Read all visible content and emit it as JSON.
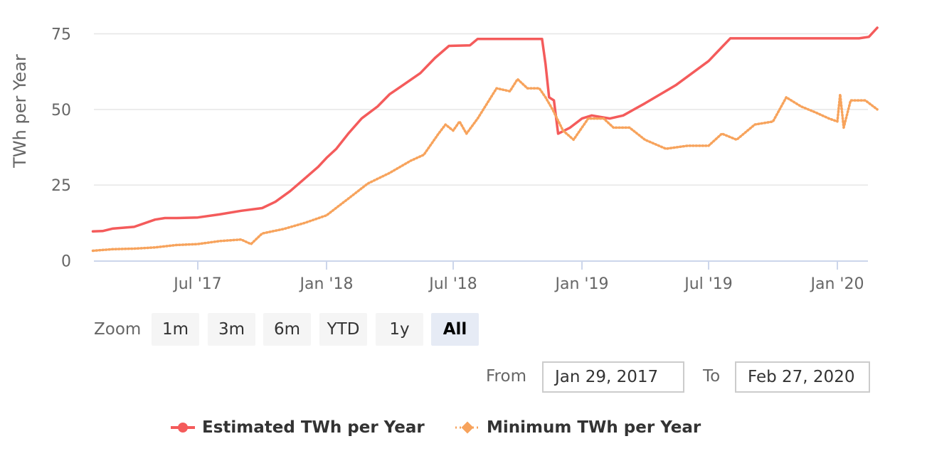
{
  "chart_data": {
    "type": "line",
    "ylabel": "TWh per Year",
    "yticks": [
      0,
      25,
      50,
      75
    ],
    "ylim": [
      0,
      75
    ],
    "x_ticks": [
      {
        "date": "2017-07-01",
        "label": "Jul '17"
      },
      {
        "date": "2018-01-01",
        "label": "Jan '18"
      },
      {
        "date": "2018-07-01",
        "label": "Jul '18"
      },
      {
        "date": "2019-01-01",
        "label": "Jan '19"
      },
      {
        "date": "2019-07-01",
        "label": "Jul '19"
      },
      {
        "date": "2020-01-01",
        "label": "Jan '20"
      }
    ],
    "xlim": [
      "2017-02-01",
      "2020-02-27"
    ],
    "grid": true,
    "series": [
      {
        "name": "Estimated TWh per Year",
        "color": "#f45b5b",
        "style": "solid",
        "points": [
          [
            "2017-02-01",
            9.7
          ],
          [
            "2017-02-15",
            9.8
          ],
          [
            "2017-03-01",
            10.6
          ],
          [
            "2017-04-01",
            11.2
          ],
          [
            "2017-05-01",
            13.6
          ],
          [
            "2017-05-15",
            14.1
          ],
          [
            "2017-06-01",
            14.1
          ],
          [
            "2017-07-01",
            14.3
          ],
          [
            "2017-08-01",
            15.3
          ],
          [
            "2017-09-01",
            16.5
          ],
          [
            "2017-10-01",
            17.4
          ],
          [
            "2017-10-20",
            19.5
          ],
          [
            "2017-11-10",
            23.0
          ],
          [
            "2017-11-30",
            27.0
          ],
          [
            "2017-12-20",
            31.0
          ],
          [
            "2018-01-01",
            34.0
          ],
          [
            "2018-01-15",
            37.0
          ],
          [
            "2018-02-01",
            42.0
          ],
          [
            "2018-02-20",
            47.0
          ],
          [
            "2018-03-15",
            51.0
          ],
          [
            "2018-04-01",
            55.0
          ],
          [
            "2018-04-20",
            58.0
          ],
          [
            "2018-05-15",
            62.0
          ],
          [
            "2018-06-05",
            67.0
          ],
          [
            "2018-06-25",
            71.0
          ],
          [
            "2018-07-25",
            71.2
          ],
          [
            "2018-08-05",
            73.3
          ],
          [
            "2018-11-05",
            73.3
          ],
          [
            "2018-11-10",
            65.0
          ],
          [
            "2018-11-15",
            54.0
          ],
          [
            "2018-11-22",
            53.0
          ],
          [
            "2018-11-28",
            42.0
          ],
          [
            "2018-12-15",
            44.0
          ],
          [
            "2019-01-01",
            47.0
          ],
          [
            "2019-01-15",
            48.0
          ],
          [
            "2019-02-10",
            47.0
          ],
          [
            "2019-03-01",
            48.0
          ],
          [
            "2019-04-01",
            52.0
          ],
          [
            "2019-05-15",
            58.0
          ],
          [
            "2019-07-01",
            66.0
          ],
          [
            "2019-08-01",
            73.5
          ],
          [
            "2020-02-01",
            73.5
          ],
          [
            "2020-02-15",
            74.0
          ],
          [
            "2020-02-27",
            77.0
          ]
        ]
      },
      {
        "name": "Minimum TWh per Year",
        "color": "#f7a35c",
        "style": "dotted",
        "points": [
          [
            "2017-02-01",
            3.3
          ],
          [
            "2017-03-01",
            3.8
          ],
          [
            "2017-04-01",
            4.0
          ],
          [
            "2017-05-01",
            4.4
          ],
          [
            "2017-06-01",
            5.2
          ],
          [
            "2017-07-01",
            5.5
          ],
          [
            "2017-08-01",
            6.5
          ],
          [
            "2017-09-01",
            7.0
          ],
          [
            "2017-09-15",
            5.5
          ],
          [
            "2017-10-01",
            9.0
          ],
          [
            "2017-11-01",
            10.5
          ],
          [
            "2017-12-01",
            12.5
          ],
          [
            "2018-01-01",
            15.0
          ],
          [
            "2018-02-01",
            20.5
          ],
          [
            "2018-03-01",
            25.5
          ],
          [
            "2018-04-01",
            29.0
          ],
          [
            "2018-05-01",
            33.0
          ],
          [
            "2018-05-20",
            35.0
          ],
          [
            "2018-06-10",
            42.0
          ],
          [
            "2018-06-20",
            45.0
          ],
          [
            "2018-07-01",
            43.0
          ],
          [
            "2018-07-10",
            46.0
          ],
          [
            "2018-07-20",
            42.0
          ],
          [
            "2018-08-05",
            47.0
          ],
          [
            "2018-09-01",
            57.0
          ],
          [
            "2018-09-20",
            56.0
          ],
          [
            "2018-10-01",
            60.0
          ],
          [
            "2018-10-15",
            57.0
          ],
          [
            "2018-11-01",
            57.0
          ],
          [
            "2018-11-10",
            54.0
          ],
          [
            "2018-11-20",
            50.0
          ],
          [
            "2018-12-05",
            43.0
          ],
          [
            "2018-12-20",
            40.0
          ],
          [
            "2019-01-10",
            47.0
          ],
          [
            "2019-02-01",
            47.0
          ],
          [
            "2019-02-15",
            44.0
          ],
          [
            "2019-03-10",
            44.0
          ],
          [
            "2019-04-01",
            40.0
          ],
          [
            "2019-05-01",
            37.0
          ],
          [
            "2019-06-01",
            38.0
          ],
          [
            "2019-07-01",
            38.0
          ],
          [
            "2019-07-20",
            42.0
          ],
          [
            "2019-08-10",
            40.0
          ],
          [
            "2019-09-05",
            45.0
          ],
          [
            "2019-10-01",
            46.0
          ],
          [
            "2019-10-20",
            54.0
          ],
          [
            "2019-11-10",
            51.0
          ],
          [
            "2019-12-01",
            49.0
          ],
          [
            "2019-12-20",
            47.0
          ],
          [
            "2020-01-01",
            46.0
          ],
          [
            "2020-01-05",
            55.0
          ],
          [
            "2020-01-10",
            44.0
          ],
          [
            "2020-01-20",
            53.0
          ],
          [
            "2020-02-10",
            53.0
          ],
          [
            "2020-02-27",
            50.0
          ]
        ]
      }
    ]
  },
  "rangeSelector": {
    "zoom_label": "Zoom",
    "buttons": [
      {
        "label": "1m",
        "active": false
      },
      {
        "label": "3m",
        "active": false
      },
      {
        "label": "6m",
        "active": false
      },
      {
        "label": "YTD",
        "active": false
      },
      {
        "label": "1y",
        "active": false
      },
      {
        "label": "All",
        "active": true
      }
    ],
    "from_label": "From",
    "from_value": "Jan 29, 2017",
    "to_label": "To",
    "to_value": "Feb 27, 2020"
  },
  "legend": {
    "items": [
      {
        "label": "Estimated TWh per Year",
        "color": "#f45b5b"
      },
      {
        "label": "Minimum TWh per Year",
        "color": "#f7a35c"
      }
    ]
  }
}
